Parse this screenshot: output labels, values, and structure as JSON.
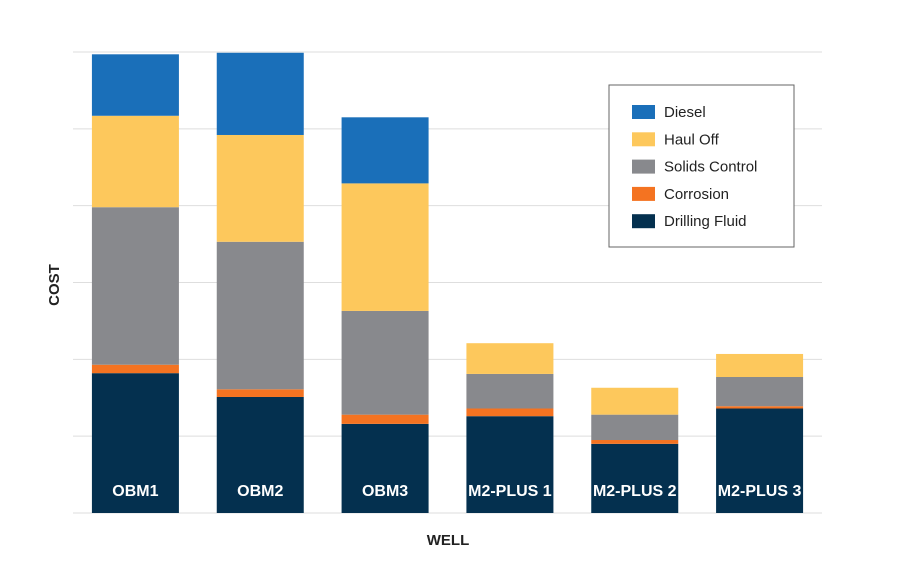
{
  "chart_data": {
    "type": "bar",
    "stacked": true,
    "xlabel": "WELL",
    "ylabel": "COST",
    "ylim": [
      0,
      6
    ],
    "grid": true,
    "legend_position": "top-right",
    "categories": [
      "OBM1",
      "OBM2",
      "OBM3",
      "M2-PLUS 1",
      "M2-PLUS 2",
      "M2-PLUS 3"
    ],
    "series": [
      {
        "name": "Drilling Fluid",
        "color": "#04304F",
        "values": [
          1.82,
          1.51,
          1.16,
          1.26,
          0.9,
          1.36
        ]
      },
      {
        "name": "Corrosion",
        "color": "#F47321",
        "values": [
          0.11,
          0.1,
          0.12,
          0.1,
          0.05,
          0.03
        ]
      },
      {
        "name": "Solids Control",
        "color": "#88898D",
        "values": [
          2.05,
          1.92,
          1.35,
          0.45,
          0.33,
          0.38
        ]
      },
      {
        "name": "Haul Off",
        "color": "#FDC85C",
        "values": [
          1.19,
          1.39,
          1.66,
          0.4,
          0.35,
          0.3
        ]
      },
      {
        "name": "Diesel",
        "color": "#1A6FB9",
        "values": [
          0.8,
          1.07,
          0.86,
          0,
          0,
          0
        ]
      }
    ]
  }
}
